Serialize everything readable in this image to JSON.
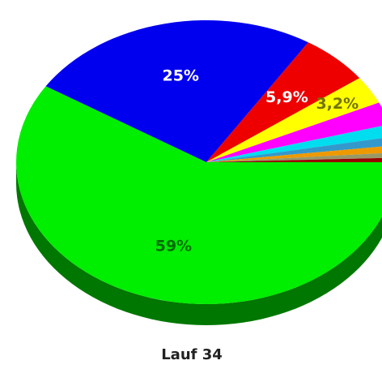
{
  "chart_data": {
    "type": "pie",
    "title": "Lauf 34",
    "values": [
      59,
      25,
      5.9,
      3.2,
      2.6,
      1.4,
      1.0,
      0.8,
      0.6,
      0.5
    ],
    "value_labels": [
      "59%",
      "25%",
      "5,9%",
      "3,2%",
      null,
      null,
      null,
      null,
      null,
      null
    ],
    "colors": [
      "#00ee00",
      "#0000ee",
      "#ee0000",
      "#ffff00",
      "#ff00ff",
      "#00ddee",
      "#3399cc",
      "#ee9900",
      "#999966",
      "#990000"
    ]
  }
}
